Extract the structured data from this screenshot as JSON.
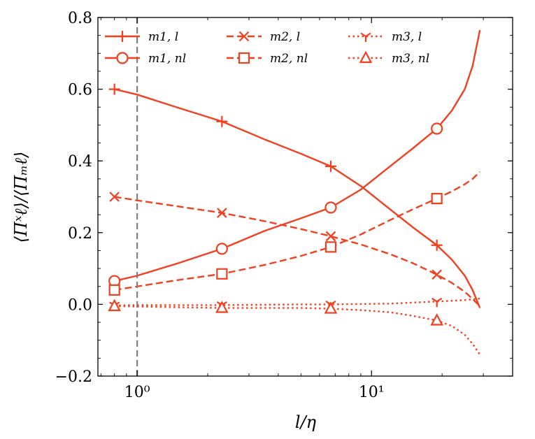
{
  "chart_data": {
    "type": "line",
    "title": "",
    "xlabel": "l/η",
    "ylabel": "⟨Πˣℓ⟩/⟨Πₘℓ⟩",
    "xscale": "log",
    "xlim": [
      0.68,
      40
    ],
    "ylim": [
      -0.2,
      0.8
    ],
    "grid": false,
    "legend_position": "top",
    "x_ticks": [
      {
        "value": 1,
        "label": "10⁰"
      },
      {
        "value": 10,
        "label": "10¹"
      }
    ],
    "y_ticks": [
      {
        "value": -0.2,
        "label": "−0.2"
      },
      {
        "value": 0.0,
        "label": "0.0"
      },
      {
        "value": 0.2,
        "label": "0.2"
      },
      {
        "value": 0.4,
        "label": "0.4"
      },
      {
        "value": 0.6,
        "label": "0.6"
      },
      {
        "value": 0.8,
        "label": "0.8"
      }
    ],
    "reference_line": {
      "x": 1,
      "color": "#808080",
      "style": "dashed"
    },
    "color": "#f0401e",
    "series": [
      {
        "name": "m1, l",
        "dash": "solid",
        "marker": "plus",
        "x": [
          0.8,
          1.0,
          1.5,
          2.3,
          3.5,
          5.0,
          6.7,
          9.0,
          12.0,
          15.0,
          19.0,
          22.0,
          25.0,
          27.0,
          29.0
        ],
        "y": [
          0.6,
          0.585,
          0.548,
          0.51,
          0.46,
          0.42,
          0.385,
          0.33,
          0.265,
          0.215,
          0.165,
          0.125,
          0.08,
          0.04,
          -0.01
        ],
        "marker_x": [
          0.8,
          2.3,
          6.7,
          19.0
        ],
        "marker_y": [
          0.6,
          0.51,
          0.385,
          0.165
        ]
      },
      {
        "name": "m1, nl",
        "dash": "solid",
        "marker": "circle",
        "x": [
          0.8,
          1.0,
          1.5,
          2.3,
          3.5,
          5.0,
          6.7,
          9.0,
          12.0,
          15.0,
          19.0,
          22.0,
          25.0,
          27.0,
          29.0
        ],
        "y": [
          0.065,
          0.08,
          0.115,
          0.155,
          0.205,
          0.24,
          0.27,
          0.32,
          0.385,
          0.435,
          0.49,
          0.54,
          0.6,
          0.665,
          0.765
        ],
        "marker_x": [
          0.8,
          2.3,
          6.7,
          19.0
        ],
        "marker_y": [
          0.065,
          0.155,
          0.27,
          0.49
        ]
      },
      {
        "name": "m2, l",
        "dash": "dashed",
        "marker": "x",
        "x": [
          0.8,
          1.0,
          1.5,
          2.3,
          3.5,
          5.0,
          6.7,
          9.0,
          12.0,
          15.0,
          19.0,
          22.0,
          25.0,
          27.0,
          29.0
        ],
        "y": [
          0.3,
          0.29,
          0.273,
          0.255,
          0.232,
          0.21,
          0.19,
          0.167,
          0.14,
          0.115,
          0.083,
          0.06,
          0.035,
          0.015,
          -0.005
        ],
        "marker_x": [
          0.8,
          2.3,
          6.7,
          19.0
        ],
        "marker_y": [
          0.3,
          0.255,
          0.19,
          0.083
        ]
      },
      {
        "name": "m2, nl",
        "dash": "dashed",
        "marker": "square",
        "x": [
          0.8,
          1.0,
          1.5,
          2.3,
          3.5,
          5.0,
          6.7,
          9.0,
          12.0,
          15.0,
          19.0,
          22.0,
          25.0,
          27.0,
          29.0
        ],
        "y": [
          0.04,
          0.05,
          0.068,
          0.085,
          0.11,
          0.135,
          0.16,
          0.195,
          0.235,
          0.265,
          0.295,
          0.315,
          0.335,
          0.35,
          0.37
        ],
        "marker_x": [
          0.8,
          2.3,
          6.7,
          19.0
        ],
        "marker_y": [
          0.04,
          0.085,
          0.16,
          0.295
        ]
      },
      {
        "name": "m3, l",
        "dash": "dotted",
        "marker": "tri_down",
        "x": [
          0.8,
          1.0,
          1.5,
          2.3,
          3.5,
          5.0,
          6.7,
          9.0,
          12.0,
          15.0,
          19.0,
          22.0,
          25.0,
          27.0,
          29.0
        ],
        "y": [
          -0.003,
          -0.002,
          -0.002,
          -0.002,
          -0.001,
          0.0,
          0.0,
          0.001,
          0.002,
          0.005,
          0.008,
          0.01,
          0.012,
          0.014,
          0.016
        ],
        "marker_x": [
          0.8,
          2.3,
          6.7,
          19.0
        ],
        "marker_y": [
          -0.003,
          -0.002,
          0.0,
          0.008
        ]
      },
      {
        "name": "m3, nl",
        "dash": "dotted",
        "marker": "triangle",
        "x": [
          0.8,
          1.0,
          1.5,
          2.3,
          3.5,
          5.0,
          6.7,
          9.0,
          12.0,
          15.0,
          19.0,
          22.0,
          25.0,
          27.0,
          29.0
        ],
        "y": [
          -0.005,
          -0.006,
          -0.008,
          -0.01,
          -0.01,
          -0.01,
          -0.012,
          -0.016,
          -0.022,
          -0.032,
          -0.045,
          -0.06,
          -0.085,
          -0.11,
          -0.14
        ],
        "marker_x": [
          0.8,
          2.3,
          6.7,
          19.0
        ],
        "marker_y": [
          -0.005,
          -0.01,
          -0.012,
          -0.045
        ]
      }
    ]
  }
}
